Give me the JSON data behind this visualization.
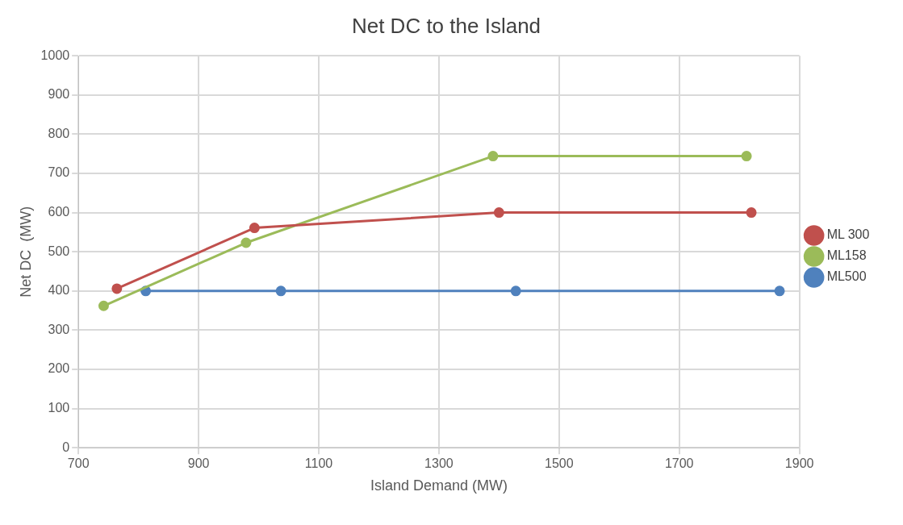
{
  "chart_data": {
    "type": "line",
    "title": "Net DC to the Island",
    "xlabel": "Island Demand (MW)",
    "ylabel": "Net DC  (MW)",
    "xlim": [
      700,
      1900
    ],
    "xticks": [
      700,
      900,
      1100,
      1300,
      1500,
      1700,
      1900
    ],
    "ylim": [
      0,
      1000
    ],
    "yticks": [
      0,
      100,
      200,
      300,
      400,
      500,
      600,
      700,
      800,
      900,
      1000
    ],
    "grid": true,
    "legend": "right",
    "marker": "circle",
    "line_style": "solid",
    "series": [
      {
        "name": "ML 300",
        "color": "#c0504d",
        "x": [
          764,
          993,
          1400,
          1820
        ],
        "values": [
          406,
          561,
          600,
          600
        ]
      },
      {
        "name": "ML158",
        "color": "#9bbb59",
        "x": [
          742,
          979,
          1390,
          1812
        ],
        "values": [
          362,
          523,
          744,
          744
        ]
      },
      {
        "name": "ML500",
        "color": "#4f81bd",
        "x": [
          812,
          1037,
          1428,
          1867
        ],
        "values": [
          400,
          400,
          400,
          400
        ]
      }
    ]
  }
}
